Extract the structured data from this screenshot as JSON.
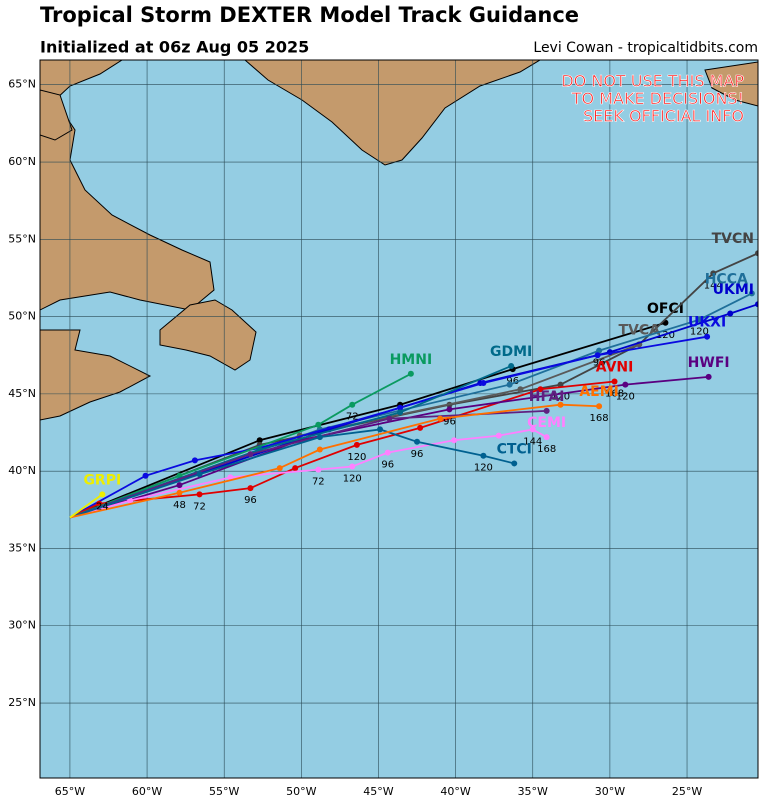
{
  "header": {
    "title": "Tropical Storm DEXTER Model Track Guidance",
    "subtitle": "Initialized at 06z Aug 05 2025",
    "credit": "Levi Cowan - tropicaltidbits.com"
  },
  "map": {
    "warning": [
      "DO NOT USE THIS MAP",
      "TO MAKE DECISIONS!",
      "SEEK OFFICIAL INFO"
    ],
    "lon_range": [
      -66.94,
      -20.4
    ],
    "lat_range": [
      20.15,
      66.6
    ],
    "lon_ticks": [
      {
        "value": -65,
        "label": "65°W"
      },
      {
        "value": -60,
        "label": "60°W"
      },
      {
        "value": -55,
        "label": "55°W"
      },
      {
        "value": -50,
        "label": "50°W"
      },
      {
        "value": -45,
        "label": "45°W"
      },
      {
        "value": -40,
        "label": "40°W"
      },
      {
        "value": -35,
        "label": "35°W"
      },
      {
        "value": -30,
        "label": "30°W"
      },
      {
        "value": -25,
        "label": "25°W"
      }
    ],
    "lat_ticks": [
      {
        "value": 25,
        "label": "25°N"
      },
      {
        "value": 30,
        "label": "30°N"
      },
      {
        "value": 35,
        "label": "35°N"
      },
      {
        "value": 40,
        "label": "40°N"
      },
      {
        "value": 45,
        "label": "45°N"
      },
      {
        "value": 50,
        "label": "50°N"
      },
      {
        "value": 55,
        "label": "55°N"
      },
      {
        "value": 60,
        "label": "60°N"
      },
      {
        "value": 65,
        "label": "65°N"
      }
    ],
    "tracks": [
      {
        "name": "OFCI",
        "color": "#000000",
        "lon": [
          -65,
          -52.7,
          -43.6,
          -36.3,
          -26.4
        ],
        "lat": [
          37.0,
          42.0,
          44.3,
          46.6,
          49.6
        ],
        "hours": [
          null,
          null,
          null,
          "96",
          "120"
        ]
      },
      {
        "name": "TVCN",
        "color": "#444444",
        "lon": [
          -65,
          -52.7,
          -40.4,
          -33.2,
          -28.1,
          -23.3,
          -20.4
        ],
        "lat": [
          37.0,
          41.7,
          44.3,
          45.6,
          48.2,
          52.8,
          54.1
        ],
        "hours": [
          null,
          null,
          null,
          "120",
          null,
          "144",
          null
        ]
      },
      {
        "name": "TVCA",
        "color": "#5a5a5a",
        "lon": [
          -65,
          -50.1,
          -35.8,
          -28.1
        ],
        "lat": [
          37.0,
          42.3,
          45.3,
          48.2
        ],
        "hours": [
          null,
          null,
          null,
          null
        ]
      },
      {
        "name": "HCCA",
        "color": "#1f6f9a",
        "lon": [
          -65,
          -48.8,
          -36.5,
          -30.7,
          -24.2,
          -20.8
        ],
        "lat": [
          37.0,
          42.7,
          45.6,
          47.8,
          49.8,
          51.5
        ],
        "hours": [
          null,
          null,
          null,
          "96",
          "120",
          null
        ]
      },
      {
        "name": "UKMI",
        "color": "#0000cc",
        "lon": [
          -65,
          -48.2,
          -38.4,
          -30.0,
          -22.2,
          -20.4
        ],
        "lat": [
          37.0,
          42.7,
          45.7,
          47.7,
          50.2,
          50.8
        ],
        "hours": [
          null,
          null,
          null,
          null,
          null,
          null
        ]
      },
      {
        "name": "UKXI",
        "color": "#0a0ae0",
        "lon": [
          -65,
          -60.1,
          -56.9,
          -52.7,
          -43.6,
          -38.2,
          -30.8,
          -23.7
        ],
        "lat": [
          37.0,
          39.7,
          40.7,
          41.5,
          44.1,
          45.7,
          47.5,
          48.7
        ],
        "hours": [
          null,
          null,
          null,
          null,
          null,
          null,
          null,
          null
        ]
      },
      {
        "name": "AVNI",
        "color": "#e00000",
        "lon": [
          -65,
          -63.1,
          -56.6,
          -53.3,
          -50.4,
          -46.4,
          -42.3,
          -34.5,
          -29.7
        ],
        "lat": [
          37.0,
          37.9,
          38.5,
          38.9,
          40.2,
          41.7,
          42.8,
          45.3,
          45.8
        ],
        "hours": [
          null,
          null,
          "72",
          "96",
          null,
          "120",
          null,
          null,
          "168"
        ]
      },
      {
        "name": "HWFI",
        "color": "#5a0080",
        "lon": [
          -65,
          -57.9,
          -50.1,
          -40.4,
          -29.0,
          -23.6
        ],
        "lat": [
          37.0,
          39.1,
          42.0,
          44.0,
          45.6,
          46.1
        ],
        "hours": [
          null,
          null,
          null,
          "96",
          "120",
          null
        ]
      },
      {
        "name": "HMNI",
        "color": "#0a9a60",
        "lon": [
          -65,
          -57.9,
          -48.9,
          -46.7,
          -42.9
        ],
        "lat": [
          37.0,
          39.7,
          43.0,
          44.3,
          46.3
        ],
        "hours": [
          null,
          null,
          null,
          "72",
          null
        ]
      },
      {
        "name": "GDMI",
        "color": "#006a8a",
        "lon": [
          -65,
          -52.7,
          -43.6,
          -36.4
        ],
        "lat": [
          37.0,
          41.4,
          43.8,
          46.8
        ],
        "hours": [
          null,
          null,
          null,
          null
        ]
      },
      {
        "name": "HFAI",
        "color": "#602080",
        "lon": [
          -65,
          -53.3,
          -44.3,
          -34.1
        ],
        "lat": [
          37.0,
          41.1,
          43.4,
          43.9
        ],
        "hours": [
          null,
          null,
          null,
          null
        ]
      },
      {
        "name": "CEMI",
        "color": "#ff80ff",
        "lon": [
          -65,
          -61.1,
          -54.6,
          -48.9,
          -46.7,
          -44.4,
          -40.1,
          -37.2,
          -35.0,
          -34.1
        ],
        "lat": [
          37.0,
          38.1,
          39.6,
          40.1,
          40.3,
          41.2,
          42.0,
          42.3,
          42.7,
          42.2
        ],
        "hours": [
          null,
          null,
          null,
          "72",
          "120",
          "96",
          null,
          null,
          "144",
          "168"
        ]
      },
      {
        "name": "CTCI",
        "color": "#006090",
        "lon": [
          -65,
          -56.6,
          -48.8,
          -44.9,
          -42.5,
          -38.2,
          -36.2
        ],
        "lat": [
          37.0,
          39.8,
          42.2,
          42.7,
          41.9,
          41.0,
          40.5
        ],
        "hours": [
          null,
          null,
          null,
          null,
          "96",
          "120",
          null
        ]
      },
      {
        "name": "AEMI",
        "color": "#ff7000",
        "lon": [
          -65,
          -57.9,
          -51.4,
          -48.8,
          -41.0,
          -33.2,
          -30.7
        ],
        "lat": [
          37.0,
          38.6,
          40.2,
          41.4,
          43.4,
          44.3,
          44.2
        ],
        "hours": [
          null,
          "48",
          null,
          null,
          null,
          null,
          "168"
        ]
      },
      {
        "name": "GRPI",
        "color": "#eeee00",
        "lon": [
          -65,
          -62.9
        ],
        "lat": [
          37.0,
          38.5
        ],
        "hours": [
          null,
          "24"
        ]
      }
    ]
  }
}
